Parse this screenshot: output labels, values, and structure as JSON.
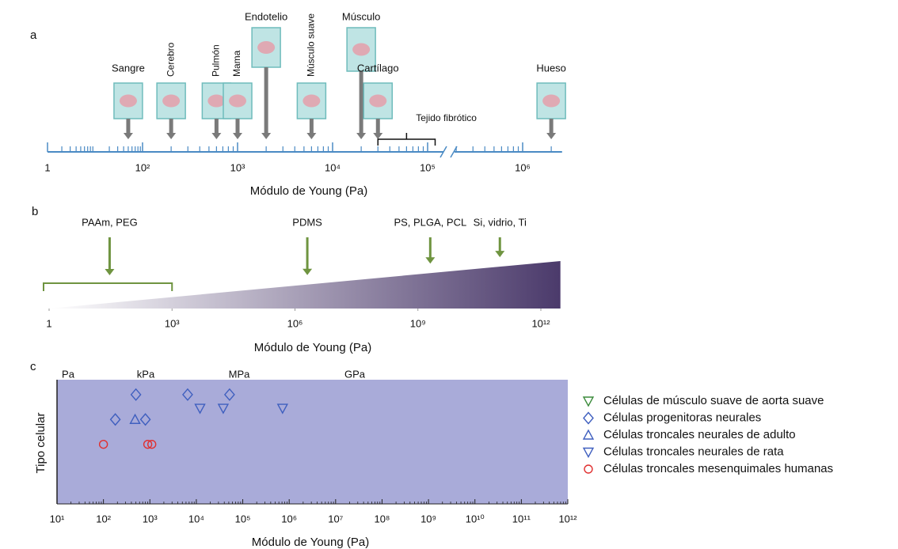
{
  "chart_data": [
    {
      "type": "scale",
      "panel": "a",
      "xlabel": "Módulo de Young (Pa)",
      "xlim": [
        1,
        2600000
      ],
      "xticks": [
        1,
        {
          "value": 100,
          "label": "10²"
        },
        {
          "value": 1000,
          "label": "10³"
        },
        {
          "value": 10000,
          "label": "10⁴"
        },
        {
          "value": 100000,
          "label": "10⁵"
        },
        {
          "value": 1000000,
          "label": "10⁶"
        }
      ],
      "items": [
        {
          "label": "Sangre",
          "value": 50
        },
        {
          "label": "Cerebro",
          "value": 200
        },
        {
          "label": "Pulmón",
          "value": 600
        },
        {
          "label": "Mama",
          "value": 1000
        },
        {
          "label": "Endotelio",
          "value": 2000
        },
        {
          "label": "Músculo suave",
          "value": 6000
        },
        {
          "label": "Músculo",
          "value": 20000
        },
        {
          "label": "Cartílago",
          "value": 30000
        },
        {
          "label": "Hueso",
          "value": 2000000
        }
      ],
      "bracket": {
        "label": "Tejido fibrótico",
        "range": [
          30000,
          120000
        ]
      },
      "color": "#4a8ac4"
    },
    {
      "type": "gradient",
      "panel": "b",
      "xlabel": "Módulo de Young (Pa)",
      "xlim": [
        1,
        3000000000000
      ],
      "xticks": [
        1,
        {
          "value": 1000,
          "label": "10³"
        },
        {
          "value": 1000000,
          "label": "10⁶"
        },
        {
          "value": 1000000000,
          "label": "10⁹"
        },
        {
          "value": 1000000000000,
          "label": "10¹²"
        }
      ],
      "items": [
        {
          "label": "PAAm, PEG",
          "value": 30,
          "range": [
            1,
            1000
          ]
        },
        {
          "label": "PDMS",
          "value": 2000000
        },
        {
          "label": "PS, PLGA, PCL",
          "value": 2000000000
        },
        {
          "label": "Si, vidrio, Ti",
          "value": 100000000000
        }
      ],
      "color": "#4b3a6b",
      "arrow_color": "#6f9440"
    },
    {
      "type": "scatter",
      "panel": "c",
      "xlabel": "Módulo de Young (Pa)",
      "ylabel": "Tipo celular",
      "log_x": true,
      "xlim": [
        10,
        1000000000000
      ],
      "ylim": [
        0,
        10
      ],
      "xticks": [
        {
          "value": 10,
          "label": "10¹"
        },
        {
          "value": 100,
          "label": "10²"
        },
        {
          "value": 1000,
          "label": "10³"
        },
        {
          "value": 10000,
          "label": "10⁴"
        },
        {
          "value": 100000,
          "label": "10⁵"
        },
        {
          "value": 1000000,
          "label": "10⁶"
        },
        {
          "value": 10000000,
          "label": "10⁷"
        },
        {
          "value": 100000000,
          "label": "10⁸"
        },
        {
          "value": 1000000000,
          "label": "10⁹"
        },
        {
          "value": 10000000000,
          "label": "10¹⁰"
        },
        {
          "value": 100000000000,
          "label": "10¹¹"
        },
        {
          "value": 1000000000000,
          "label": "10¹²"
        }
      ],
      "unit_labels": [
        "Pa",
        "kPa",
        "MPa",
        "GPa"
      ],
      "background": "#a9abd9",
      "series": [
        {
          "name": "Células de músculo suave de aorta suave",
          "color": "#3a8a3a",
          "marker": "triangle-down",
          "x": [],
          "values": []
        },
        {
          "name": "Células progenitoras neurales",
          "color": "#3f5fbf",
          "marker": "diamond",
          "x": [
            180,
            500,
            800,
            6500,
            52000
          ],
          "values": [
            6.8,
            8.8,
            6.8,
            8.8,
            8.8
          ]
        },
        {
          "name": "Células troncales neurales de adulto",
          "color": "#3f5fbf",
          "marker": "triangle-up",
          "x": [
            480
          ],
          "values": [
            6.8
          ]
        },
        {
          "name": "Células troncales neurales de rata",
          "color": "#3f5fbf",
          "marker": "triangle-down",
          "x": [
            12000,
            38000,
            720000
          ],
          "values": [
            7.7,
            7.7,
            7.7
          ]
        },
        {
          "name": "Células troncales mesenquimales humanas",
          "color": "#e03030",
          "marker": "circle",
          "x": [
            100,
            900,
            1100
          ],
          "values": [
            4.8,
            4.8,
            4.8
          ]
        }
      ]
    }
  ]
}
